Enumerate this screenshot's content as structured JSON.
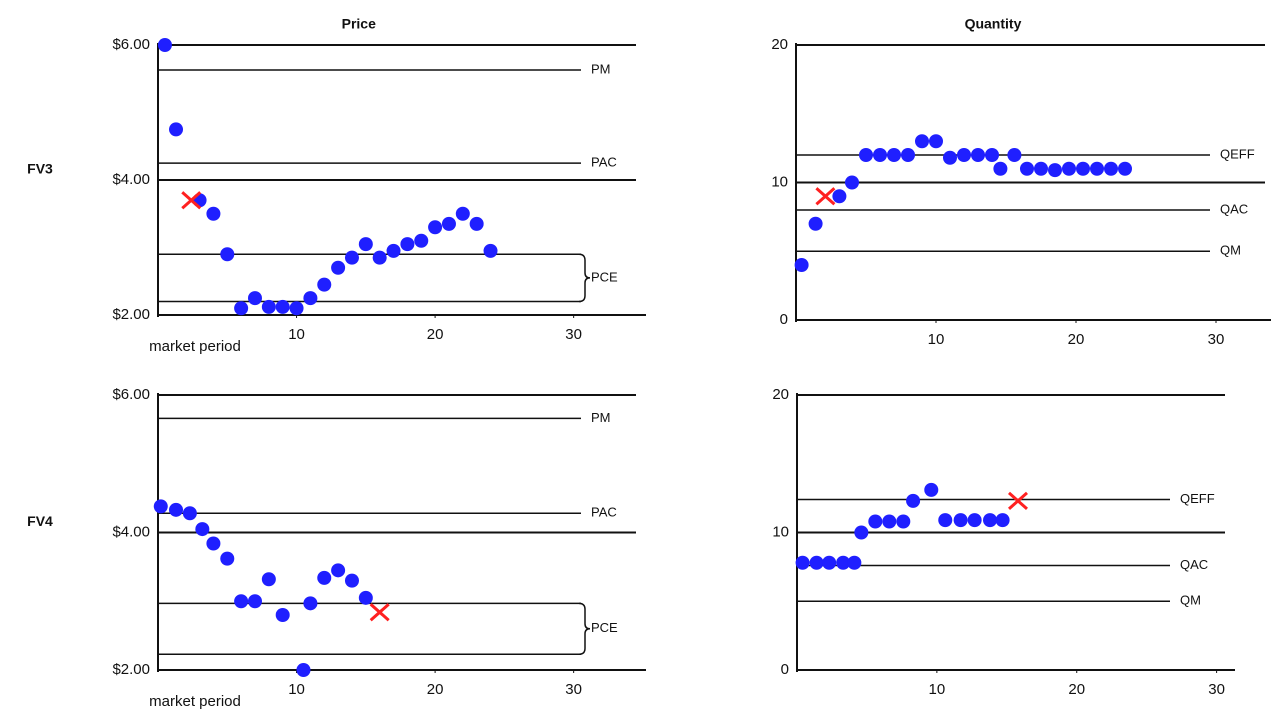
{
  "chart_data": [
    {
      "type": "scatter",
      "title": "Price",
      "row_label": "FV3",
      "xlabel": "market period",
      "xlim": [
        0,
        34.5
      ],
      "ylim": [
        2,
        6
      ],
      "xticks": [
        10,
        20,
        30
      ],
      "yticks": [
        {
          "value": 2,
          "label": "$2.00"
        },
        {
          "value": 4,
          "label": "$4.00"
        },
        {
          "value": 6,
          "label": "$6.00"
        }
      ],
      "grid": true,
      "ref_lines": [
        {
          "value": 5.63,
          "label": "PM"
        },
        {
          "value": 4.25,
          "label": "PAC"
        }
      ],
      "ref_bands": [
        {
          "range": [
            2.2,
            2.9
          ],
          "label": "PCE"
        }
      ],
      "series": [
        {
          "color": "#1f1fff",
          "marker": "dot",
          "x": [
            0.5,
            1.3,
            3,
            4,
            5,
            6,
            7,
            8,
            9,
            10,
            11,
            12,
            13,
            14,
            15,
            16,
            17,
            18,
            19,
            20,
            21,
            22,
            23,
            24
          ],
          "values": [
            6.0,
            4.75,
            3.7,
            3.5,
            2.9,
            2.1,
            2.25,
            2.12,
            2.12,
            2.1,
            2.25,
            2.45,
            2.7,
            2.85,
            3.05,
            2.85,
            2.95,
            3.05,
            3.1,
            3.3,
            3.35,
            3.5,
            3.35,
            2.95
          ]
        },
        {
          "color": "#ff2020",
          "marker": "cross",
          "x": [
            2.4
          ],
          "values": [
            3.7
          ]
        }
      ]
    },
    {
      "type": "scatter",
      "title": "Quantity",
      "xlim": [
        0,
        33.5
      ],
      "ylim": [
        0,
        20
      ],
      "xticks": [
        10,
        20,
        30
      ],
      "yticks": [
        0,
        10,
        20
      ],
      "grid": true,
      "ref_lines": [
        {
          "value": 12,
          "label": "QEFF"
        },
        {
          "value": 8,
          "label": "QAC"
        },
        {
          "value": 5,
          "label": "QM"
        }
      ],
      "series": [
        {
          "color": "#1f1fff",
          "marker": "dot",
          "x": [
            0.4,
            1.4,
            3.1,
            4,
            5,
            6,
            7,
            8,
            9,
            10,
            11,
            12,
            13,
            14,
            14.6,
            15.6,
            16.5,
            17.5,
            18.5,
            19.5,
            20.5,
            21.5,
            22.5,
            23.5
          ],
          "values": [
            4,
            7,
            9,
            10,
            12,
            12,
            12,
            12,
            13,
            13,
            11.8,
            12,
            12,
            12,
            11,
            12,
            11,
            11,
            10.9,
            11,
            11,
            11,
            11,
            11
          ]
        },
        {
          "color": "#ff2020",
          "marker": "cross",
          "x": [
            2.1
          ],
          "values": [
            9
          ]
        }
      ]
    },
    {
      "type": "scatter",
      "row_label": "FV4",
      "xlabel": "market period",
      "xlim": [
        0,
        34.5
      ],
      "ylim": [
        2,
        6
      ],
      "xticks": [
        10,
        20,
        30
      ],
      "yticks": [
        {
          "value": 2,
          "label": "$2.00"
        },
        {
          "value": 4,
          "label": "$4.00"
        },
        {
          "value": 6,
          "label": "$6.00"
        }
      ],
      "grid": true,
      "ref_lines": [
        {
          "value": 5.66,
          "label": "PM"
        },
        {
          "value": 4.28,
          "label": "PAC"
        }
      ],
      "ref_bands": [
        {
          "range": [
            2.23,
            2.97
          ],
          "label": "PCE"
        }
      ],
      "series": [
        {
          "color": "#1f1fff",
          "marker": "dot",
          "x": [
            0.2,
            1.3,
            2.3,
            3.2,
            4,
            5,
            6,
            7,
            8,
            9,
            10.5,
            11,
            12,
            13,
            14,
            15
          ],
          "values": [
            4.38,
            4.33,
            4.28,
            4.05,
            3.84,
            3.62,
            3.0,
            3.0,
            3.32,
            2.8,
            2.0,
            2.97,
            3.34,
            3.45,
            3.3,
            3.05
          ]
        },
        {
          "color": "#ff2020",
          "marker": "cross",
          "x": [
            16
          ],
          "values": [
            2.84
          ]
        }
      ]
    },
    {
      "type": "scatter",
      "xlim": [
        0,
        30.6
      ],
      "ylim": [
        0,
        20
      ],
      "xticks": [
        10,
        20,
        30
      ],
      "yticks": [
        0,
        10,
        20
      ],
      "grid": true,
      "ref_lines": [
        {
          "value": 12.4,
          "label": "QEFF"
        },
        {
          "value": 7.6,
          "label": "QAC"
        },
        {
          "value": 5,
          "label": "QM"
        }
      ],
      "series": [
        {
          "color": "#1f1fff",
          "marker": "dot",
          "x": [
            0.4,
            1.4,
            2.3,
            3.3,
            4.1,
            4.6,
            5.6,
            6.6,
            7.6,
            8.3,
            9.6,
            10.6,
            11.7,
            12.7,
            13.8,
            14.7
          ],
          "values": [
            7.8,
            7.8,
            7.8,
            7.8,
            7.8,
            10,
            10.8,
            10.8,
            10.8,
            12.3,
            13.1,
            10.9,
            10.9,
            10.9,
            10.9,
            10.9
          ]
        },
        {
          "color": "#ff2020",
          "marker": "cross",
          "x": [
            15.8
          ],
          "values": [
            12.3
          ]
        }
      ]
    }
  ]
}
